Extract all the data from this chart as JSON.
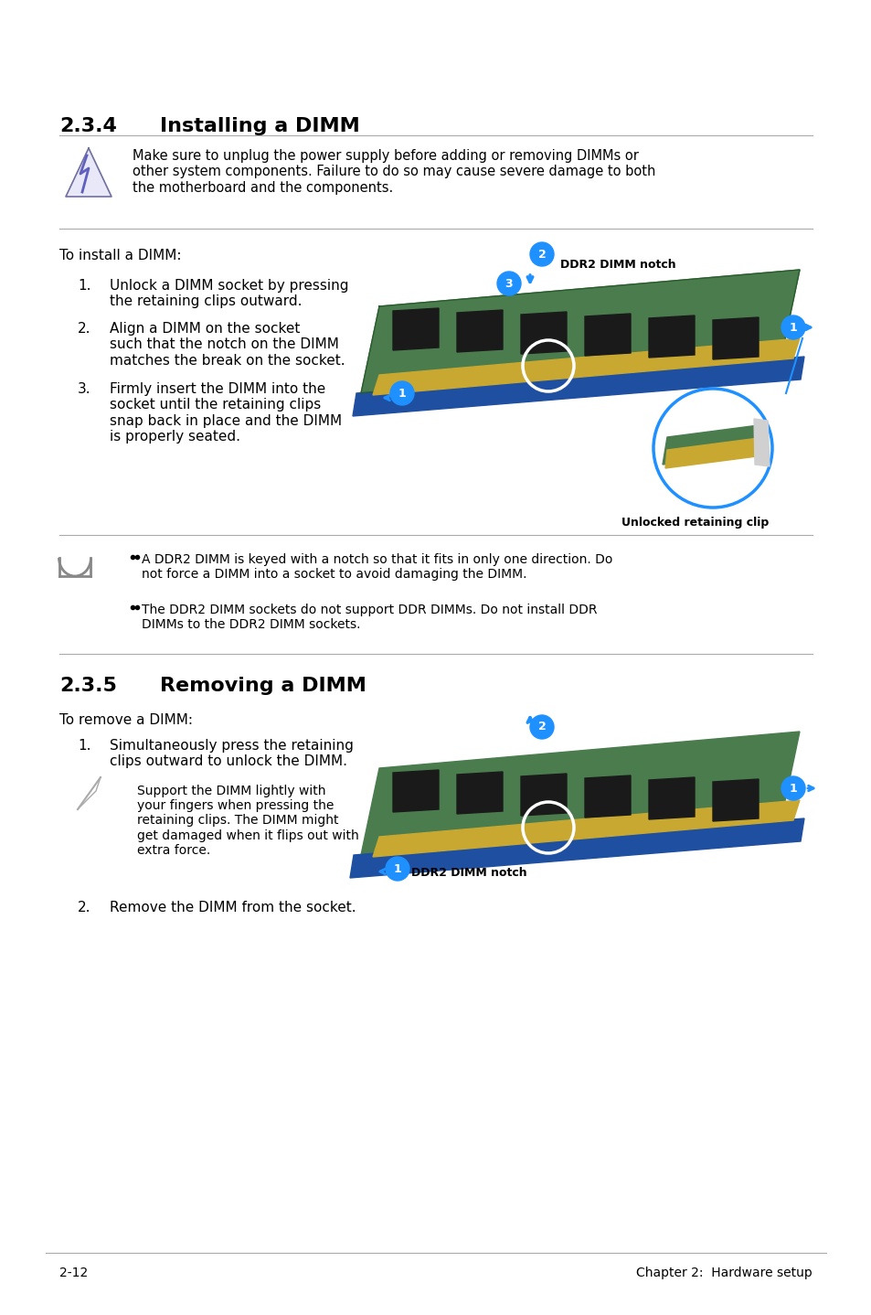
{
  "bg_color": "#ffffff",
  "section1_num": "2.3.4",
  "section1_title": "Installing a DIMM",
  "section2_num": "2.3.5",
  "section2_title": "Removing a DIMM",
  "warning_text": "Make sure to unplug the power supply before adding or removing DIMMs or\nother system components. Failure to do so may cause severe damage to both\nthe motherboard and the components.",
  "install_intro": "To install a DIMM:",
  "install_steps": [
    "Unlock a DIMM socket by pressing\nthe retaining clips outward.",
    "Align a DIMM on the socket\nsuch that the notch on the DIMM\nmatches the break on the socket.",
    "Firmly insert the DIMM into the\nsocket until the retaining clips\nsnap back in place and the DIMM\nis properly seated."
  ],
  "install_notes": [
    "A DDR2 DIMM is keyed with a notch so that it fits in only one direction. Do\nnot force a DIMM into a socket to avoid damaging the DIMM.",
    "The DDR2 DIMM sockets do not support DDR DIMMs. Do not install DDR\nDIMMs to the DDR2 DIMM sockets."
  ],
  "remove_intro": "To remove a DIMM:",
  "remove_steps": [
    "Simultaneously press the retaining\nclips outward to unlock the DIMM."
  ],
  "remove_note": "Support the DIMM lightly with\nyour fingers when pressing the\nretaining clips. The DIMM might\nget damaged when it flips out with\nextra force.",
  "remove_step2": "Remove the DIMM from the socket.",
  "footer_left": "2-12",
  "footer_right": "Chapter 2:  Hardware setup",
  "accent_color": "#1e90ff",
  "text_color": "#000000",
  "line_color": "#cccccc",
  "section_color": "#000000"
}
